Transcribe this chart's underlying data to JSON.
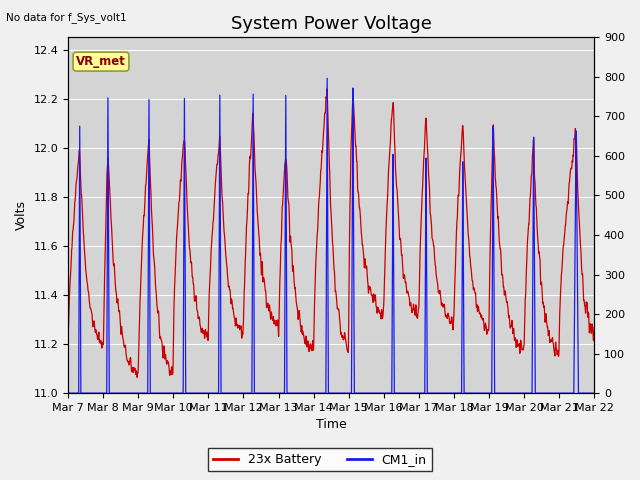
{
  "title": "System Power Voltage",
  "xlabel": "Time",
  "ylabel": "Volts",
  "no_data_text": "No data for f_Sys_volt1",
  "vr_met_label": "VR_met",
  "legend_labels": [
    "23x Battery",
    "CM1_in"
  ],
  "red_color": "#cc0000",
  "blue_color": "#1a1aee",
  "ylim_left": [
    11.0,
    12.45
  ],
  "ylim_right": [
    0,
    900
  ],
  "yticks_left": [
    11.0,
    11.2,
    11.4,
    11.6,
    11.8,
    12.0,
    12.2,
    12.4
  ],
  "yticks_right": [
    0,
    100,
    200,
    300,
    400,
    500,
    600,
    700,
    800,
    900
  ],
  "xtick_labels": [
    "Mar 7",
    "Mar 8",
    "Mar 9",
    "Mar 10",
    "Mar 11",
    "Mar 12",
    "Mar 13",
    "Mar 14",
    "Mar 15",
    "Mar 16",
    "Mar 17",
    "Mar 18",
    "Mar 19",
    "Mar 20",
    "Mar 21",
    "Mar 22"
  ],
  "fig_bg": "#f0f0f0",
  "plot_bg": "#d4d4d4",
  "title_fontsize": 13,
  "label_fontsize": 9,
  "tick_fontsize": 8,
  "num_days": 15,
  "num_points": 6000
}
